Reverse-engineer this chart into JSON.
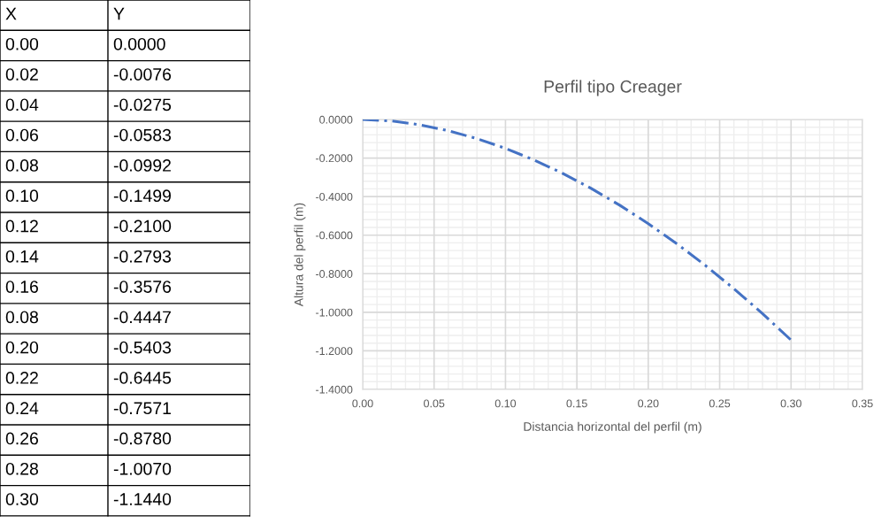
{
  "chart_data": [
    {
      "type": "other",
      "categories": [
        "X",
        "Y"
      ],
      "annotations": [
        "0.00",
        "0.0000",
        "0.02",
        "-0.0076",
        "0.04",
        "-0.0275",
        "0.06",
        "-0.0583",
        "0.08",
        "-0.0992",
        "0.10",
        "-0.1499",
        "0.12",
        "-0.2100",
        "0.14",
        "-0.2793",
        "0.16",
        "-0.3576",
        "0.08",
        "-0.4447",
        "0.20",
        "-0.5403",
        "0.22",
        "-0.6445",
        "0.24",
        "-0.7571",
        "0.26",
        "-0.8780",
        "0.28",
        "-1.0070",
        "0.30",
        "-1.1440"
      ]
    },
    {
      "type": "line",
      "title": "Perfil tipo Creager",
      "xlabel": "Distancia horizontal del perfil (m)",
      "ylabel": "Altura del perfil (m)",
      "x": [
        0.0,
        0.02,
        0.04,
        0.06,
        0.08,
        0.1,
        0.12,
        0.14,
        0.16,
        0.18,
        0.2,
        0.22,
        0.24,
        0.26,
        0.28,
        0.3
      ],
      "series": [
        {
          "color": "#4472c4",
          "values": [
            0.0,
            -0.0076,
            -0.0275,
            -0.0583,
            -0.0992,
            -0.1499,
            -0.21,
            -0.2793,
            -0.3576,
            -0.4447,
            -0.5403,
            -0.6445,
            -0.7571,
            -0.878,
            -1.007,
            -1.144
          ]
        }
      ],
      "line_style": "dashed",
      "marker": "none",
      "grid": true,
      "xlim": [
        0,
        0.35
      ],
      "xticks": [
        {
          "value": 0,
          "label": "0.00"
        },
        0.05,
        {
          "value": 0.1,
          "label": "0.10"
        },
        0.15,
        {
          "value": 0.2,
          "label": "0.20"
        },
        0.25,
        {
          "value": 0.3,
          "label": "0.30"
        },
        0.35
      ],
      "ylim": [
        -1.4,
        0
      ],
      "yticks": [
        {
          "value": -1.4,
          "label": "-1.4000"
        },
        {
          "value": -1.2,
          "label": "-1.2000"
        },
        {
          "value": -1.0,
          "label": "-1.0000"
        },
        {
          "value": -0.8,
          "label": "-0.8000"
        },
        {
          "value": -0.6,
          "label": "-0.6000"
        },
        {
          "value": -0.4,
          "label": "-0.4000"
        },
        {
          "value": -0.2,
          "label": "-0.2000"
        },
        {
          "value": 0,
          "label": "0.0000"
        }
      ]
    }
  ]
}
